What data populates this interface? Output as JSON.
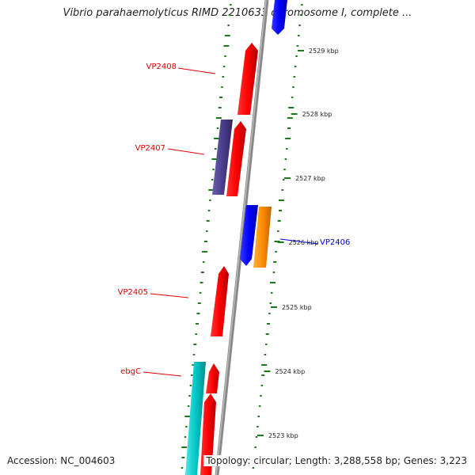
{
  "title": "Vibrio parahaemolyticus RIMD 2210633 chromosome I, complete ...",
  "footer": {
    "accession": "Accession: NC_004603",
    "summary": "Topology: circular; Length: 3,288,558 bp; Genes: 3,223"
  },
  "scale": {
    "ticks": [
      "2529 kbp",
      "2528 kbp",
      "2527 kbp",
      "2526 kbp",
      "2525 kbp",
      "2524 kbp",
      "2523 kbp"
    ]
  },
  "genes": [
    {
      "label": "VP2408",
      "color": "#ff0000"
    },
    {
      "label": "VP2407",
      "color": "#ff0000"
    },
    {
      "label": "VP2406",
      "color": "#0000ee"
    },
    {
      "label": "VP2405",
      "color": "#ff0000"
    },
    {
      "label": "ebgC",
      "color": "#ff0000"
    }
  ],
  "feature_colors": {
    "red": "#ff0000",
    "blue": "#0000ff",
    "purple": "#4b3f8c",
    "orange": "#ff8c00",
    "cyan": "#00c8c8",
    "backbone": "#888888",
    "gc_marks": "#1a7a1a"
  }
}
